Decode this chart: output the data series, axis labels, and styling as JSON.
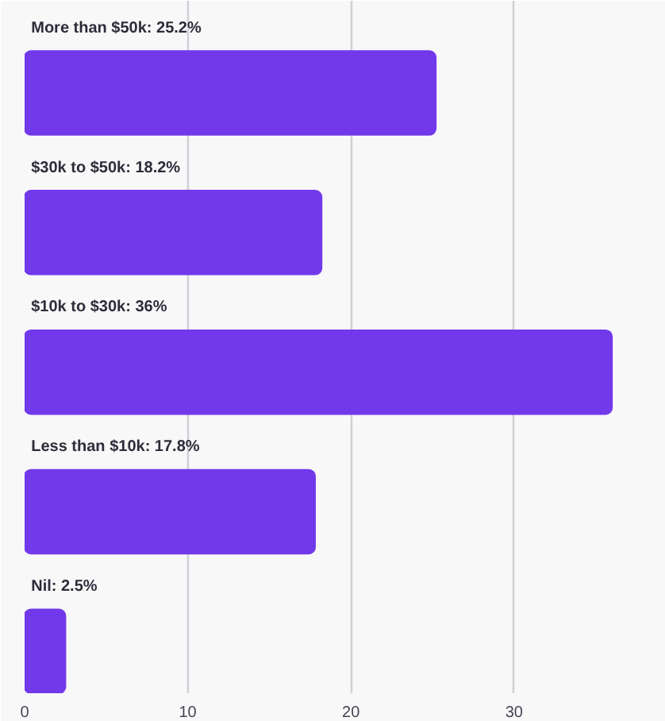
{
  "chart_data": {
    "type": "bar",
    "orientation": "horizontal",
    "categories": [
      "More than $50k: 25.2%",
      "$30k to $50k: 18.2%",
      "$10k to $30k: 36%",
      "Less than $10k: 17.8%",
      "Nil: 2.5%"
    ],
    "values": [
      25.2,
      18.2,
      36,
      17.8,
      2.5
    ],
    "color": "#7239ea",
    "xlim": [
      0,
      39.3
    ],
    "xticks": [
      0,
      10,
      20,
      30
    ],
    "grid": "x"
  }
}
